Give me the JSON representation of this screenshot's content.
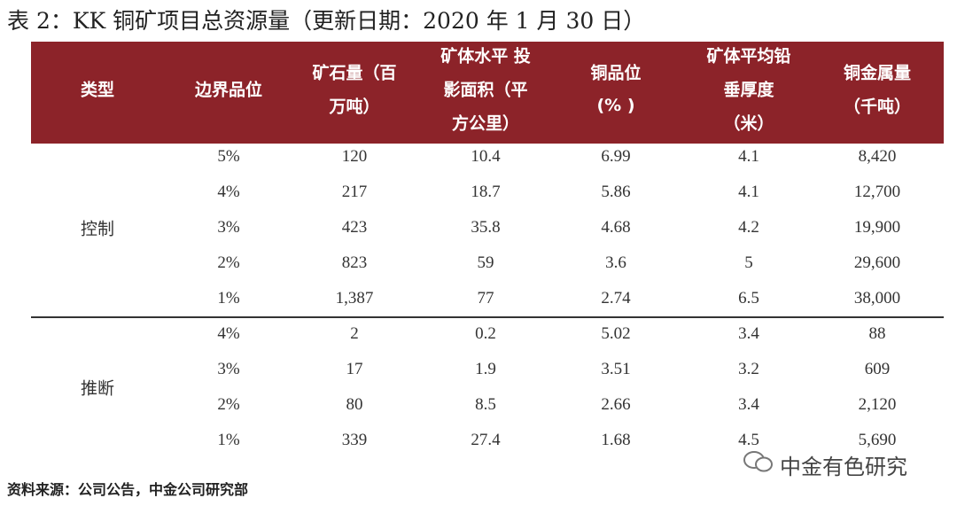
{
  "title": "表 2：KK 铜矿项目总资源量（更新日期：2020 年 1 月 30 日）",
  "table": {
    "columns": [
      [
        "类型"
      ],
      [
        "边界品位"
      ],
      [
        "矿石量（百",
        "万吨）"
      ],
      [
        "矿体水平 投",
        "影面积（平",
        "方公里）"
      ],
      [
        "铜品位",
        "(% )"
      ],
      [
        "矿体平均铅",
        "垂厚度",
        "（米）"
      ],
      [
        "铜金属量",
        "（千吨）"
      ]
    ],
    "groups": [
      {
        "label": "控制",
        "rows": [
          [
            "5%",
            "120",
            "10.4",
            "6.99",
            "4.1",
            "8,420"
          ],
          [
            "4%",
            "217",
            "18.7",
            "5.86",
            "4.1",
            "12,700"
          ],
          [
            "3%",
            "423",
            "35.8",
            "4.68",
            "4.2",
            "19,900"
          ],
          [
            "2%",
            "823",
            "59",
            "3.6",
            "5",
            "29,600"
          ],
          [
            "1%",
            "1,387",
            "77",
            "2.74",
            "6.5",
            "38,000"
          ]
        ]
      },
      {
        "label": "推断",
        "rows": [
          [
            "4%",
            "2",
            "0.2",
            "5.02",
            "3.4",
            "88"
          ],
          [
            "3%",
            "17",
            "1.9",
            "3.51",
            "3.2",
            "609"
          ],
          [
            "2%",
            "80",
            "8.5",
            "2.66",
            "3.4",
            "2,120"
          ],
          [
            "1%",
            "339",
            "27.4",
            "1.68",
            "4.5",
            "5,690"
          ]
        ]
      }
    ]
  },
  "source": "资料来源：公司公告，中金公司研究部",
  "watermark": "中金有色研究"
}
